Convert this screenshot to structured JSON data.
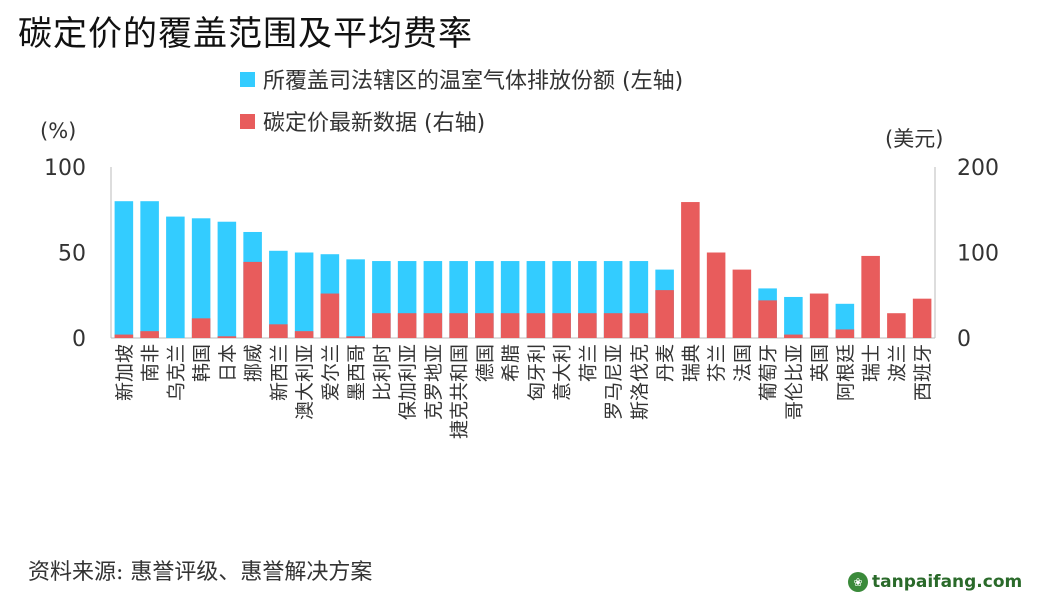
{
  "title": "碳定价的覆盖范围及平均费率",
  "source": "资料来源: 惠誉评级、惠誉解决方案",
  "watermark": "tanpaifang.com",
  "chart_data": {
    "type": "bar",
    "left_unit": "(%)",
    "right_unit": "(美元)",
    "left_ylim": [
      0,
      100
    ],
    "right_ylim": [
      0,
      200
    ],
    "left_ticks": [
      "0",
      "50",
      "100"
    ],
    "right_ticks": [
      "0",
      "100",
      "200"
    ],
    "legend_placement": "top",
    "categories": [
      "新加坡",
      "南非",
      "乌克兰",
      "韩国",
      "日本",
      "挪威",
      "新西兰",
      "澳大利亚",
      "爱尔兰",
      "墨西哥",
      "比利时",
      "保加利亚",
      "克罗地亚",
      "捷克共和国",
      "德国",
      "希腊",
      "匈牙利",
      "意大利",
      "荷兰",
      "罗马尼亚",
      "斯洛伐克",
      "丹麦",
      "瑞典",
      "芬兰",
      "法国",
      "葡萄牙",
      "哥伦比亚",
      "英国",
      "阿根廷",
      "瑞士",
      "波兰",
      "西班牙"
    ],
    "series": [
      {
        "name": "所覆盖司法辖区的温室气体排放份额 (左轴)",
        "axis": "left",
        "color": "#33CCFF",
        "values": [
          80,
          80,
          71,
          70,
          68,
          62,
          51,
          50,
          49,
          46,
          45,
          45,
          45,
          45,
          45,
          45,
          45,
          45,
          45,
          45,
          45,
          40,
          0,
          0,
          0,
          29,
          24,
          0,
          20,
          0,
          0,
          0
        ]
      },
      {
        "name": "碳定价最新数据 (右轴)",
        "axis": "right",
        "color": "#E85C5C",
        "values": [
          4,
          8,
          0,
          23,
          2,
          89,
          16,
          8,
          52,
          2,
          29,
          29,
          29,
          29,
          29,
          29,
          29,
          29,
          29,
          29,
          29,
          56,
          159,
          100,
          80,
          44,
          4,
          52,
          10,
          96,
          29,
          46
        ]
      }
    ]
  }
}
